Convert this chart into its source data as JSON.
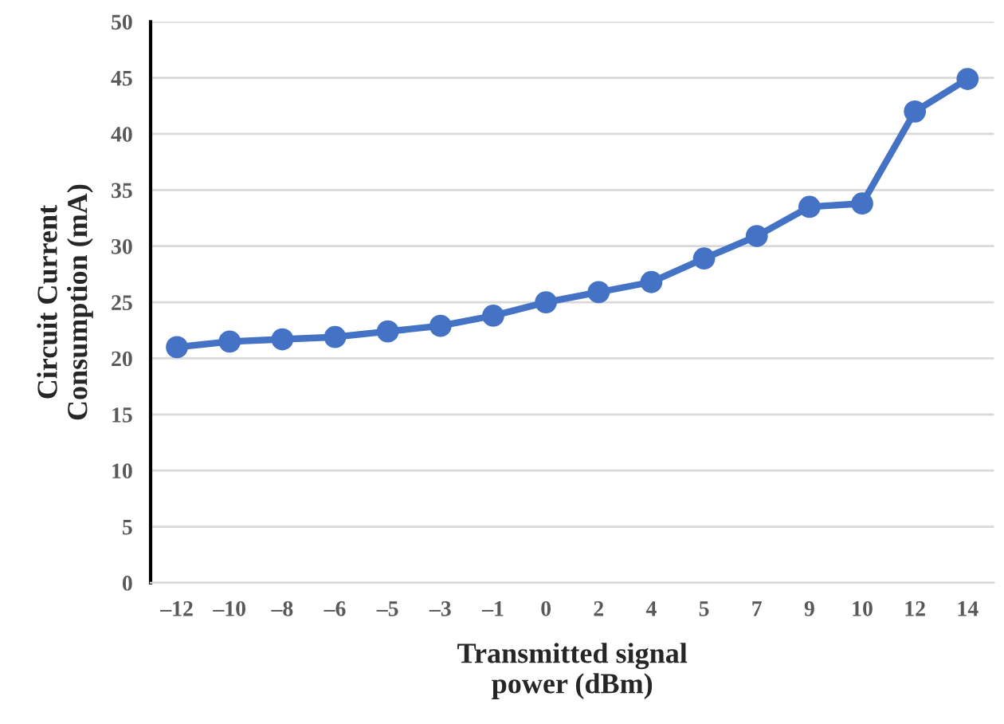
{
  "chart_data": {
    "type": "line",
    "xlabel": "Transmitted signal\npower (dBm)",
    "ylabel": "Circuit Current\nConsumption (mA)",
    "categories": [
      "–12",
      "–10",
      "–8",
      "–6",
      "–5",
      "–3",
      "–1",
      "0",
      "2",
      "4",
      "5",
      "7",
      "9",
      "10",
      "12",
      "14"
    ],
    "series": [
      {
        "color": "#4472c4",
        "values": [
          21.0,
          21.5,
          21.7,
          21.9,
          22.4,
          22.9,
          23.8,
          25.0,
          25.9,
          26.8,
          28.9,
          30.9,
          33.5,
          33.8,
          42.0,
          44.9
        ]
      }
    ],
    "ylim": [
      0,
      50
    ],
    "yticks": [
      0,
      5,
      10,
      15,
      20,
      25,
      30,
      35,
      40,
      45,
      50
    ],
    "grid": "y",
    "marker": "circle",
    "line_style": "solid"
  }
}
